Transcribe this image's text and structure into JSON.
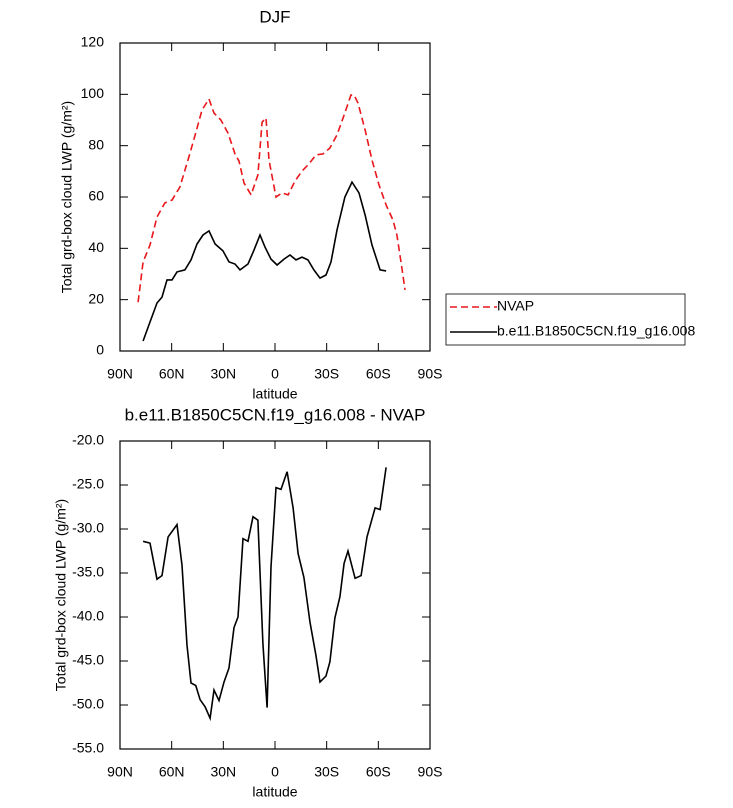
{
  "chart_data": [
    {
      "type": "line",
      "title": "DJF",
      "xlabel": "latitude",
      "ylabel": "Total grd-box cloud LWP (g/m²)",
      "xlim": [
        90,
        -90
      ],
      "xticks": [
        {
          "value": 90,
          "label": "90N"
        },
        {
          "value": 60,
          "label": "60N"
        },
        {
          "value": 30,
          "label": "30N"
        },
        0,
        {
          "value": -30,
          "label": "30S"
        },
        {
          "value": -60,
          "label": "60S"
        },
        {
          "value": -90,
          "label": "90S"
        }
      ],
      "ylim": [
        0,
        120
      ],
      "yticks": [
        0,
        20,
        40,
        60,
        80,
        100,
        120
      ],
      "legend": "right",
      "series": [
        {
          "name": "NVAP",
          "color": "#e8171b",
          "line_style": "dashed",
          "x": [
            79.5,
            76.6,
            72.6,
            68.5,
            63.9,
            59.8,
            55.2,
            50.5,
            46.5,
            42.4,
            38.3,
            35.4,
            31.4,
            27.3,
            23.2,
            20.9,
            18.0,
            13.9,
            9.9,
            7.5,
            5.2,
            3.5,
            -0.6,
            -4.1,
            -7.6,
            -11.6,
            -15.7,
            -19.7,
            -23.8,
            -27.9,
            -31.9,
            -36.0,
            -40.1,
            -44.1,
            -45.9,
            -48.2,
            -52.3,
            -56.3,
            -60.4,
            -64.5,
            -68.5,
            -70.8,
            -73.7,
            -75.5
          ],
          "values": [
            19,
            34.7,
            41.3,
            52.2,
            57.7,
            58.8,
            63.9,
            74.4,
            83.8,
            93.9,
            98.2,
            92.7,
            90,
            84.9,
            76.8,
            74,
            65.5,
            60.8,
            68.6,
            89.2,
            90.8,
            74.4,
            60,
            61.6,
            60.8,
            66.2,
            70.1,
            72.9,
            76.4,
            76.8,
            79.1,
            84.2,
            91.9,
            99.7,
            99.7,
            96.6,
            86.1,
            74.4,
            64.7,
            56.9,
            51,
            45.2,
            32.3,
            23.8
          ]
        },
        {
          "name": "b.e11.B1850C5CN.f19_g16.008",
          "color": "#000000",
          "line_style": "solid",
          "x": [
            76.6,
            72.6,
            68.5,
            65.6,
            62.7,
            59.8,
            56.9,
            52.3,
            48.8,
            45.3,
            41.8,
            38.3,
            34.8,
            30.2,
            26.7,
            23.2,
            20.3,
            15.7,
            12.2,
            8.7,
            5.8,
            2.3,
            -1.2,
            -5.2,
            -8.7,
            -12.2,
            -15.7,
            -19.1,
            -22.6,
            -26.1,
            -29.6,
            -32.5,
            -36.0,
            -40.6,
            -44.7,
            -48.8,
            -52.3,
            -56.3,
            -61.0,
            -64.5
          ],
          "values": [
            3.9,
            11.3,
            18.7,
            21,
            27.7,
            27.7,
            30.8,
            31.6,
            35.5,
            41.7,
            45.2,
            46.8,
            41.7,
            39,
            34.7,
            33.9,
            31.6,
            33.9,
            39.3,
            45.2,
            40.5,
            35.8,
            33.5,
            35.8,
            37.4,
            35.5,
            36.6,
            35.5,
            31.6,
            28.4,
            29.6,
            34.7,
            47.1,
            60,
            65.8,
            61.6,
            53,
            41.3,
            31.6,
            31.2
          ]
        }
      ]
    },
    {
      "type": "line",
      "title": "b.e11.B1850C5CN.f19_g16.008 - NVAP",
      "xlabel": "latitude",
      "ylabel": "Total grd-box cloud LWP (g/m²)",
      "xlim": [
        90,
        -90
      ],
      "xticks": [
        {
          "value": 90,
          "label": "90N"
        },
        {
          "value": 60,
          "label": "60N"
        },
        {
          "value": 30,
          "label": "30N"
        },
        0,
        {
          "value": -30,
          "label": "30S"
        },
        {
          "value": -60,
          "label": "60S"
        },
        {
          "value": -90,
          "label": "90S"
        }
      ],
      "ylim": [
        -55,
        -20
      ],
      "yticks": [
        {
          "value": -55,
          "label": "-55.0"
        },
        {
          "value": -50,
          "label": "-50.0"
        },
        {
          "value": -45,
          "label": "-45.0"
        },
        {
          "value": -40,
          "label": "-40.0"
        },
        {
          "value": -35,
          "label": "-35.0"
        },
        {
          "value": -30,
          "label": "-30.0"
        },
        {
          "value": -25,
          "label": "-25.0"
        },
        {
          "value": -20,
          "label": "-20.0"
        }
      ],
      "series": [
        {
          "color": "#000000",
          "line_style": "solid",
          "x": [
            76.6,
            72.6,
            68.5,
            65.6,
            62.1,
            56.9,
            54.0,
            51.1,
            48.8,
            46.0,
            43.5,
            40.6,
            37.7,
            35.4,
            32.5,
            29.6,
            26.7,
            23.8,
            21.5,
            18.6,
            15.7,
            12.8,
            9.9,
            7.0,
            4.6,
            2.3,
            -0.6,
            -3.5,
            -7.0,
            -10.5,
            -13.4,
            -16.8,
            -20.3,
            -23.8,
            -26.1,
            -29.6,
            -31.9,
            -34.8,
            -37.7,
            -40.1,
            -42.4,
            -46.5,
            -50.0,
            -53.4,
            -58.1,
            -61.0,
            -64.5
          ],
          "values": [
            -31.4,
            -31.6,
            -35.7,
            -35.3,
            -30.9,
            -29.5,
            -34.1,
            -43.2,
            -47.5,
            -47.8,
            -49.4,
            -50.2,
            -51.5,
            -48.3,
            -49.5,
            -47.4,
            -45.8,
            -41.2,
            -40,
            -31.1,
            -31.4,
            -28.6,
            -29,
            -43,
            -50.3,
            -34.3,
            -25.3,
            -25.5,
            -23.5,
            -27.6,
            -32.8,
            -35.5,
            -40.6,
            -44.4,
            -47.4,
            -46.7,
            -45.1,
            -40.1,
            -37.7,
            -33.9,
            -32.5,
            -35.6,
            -35.3,
            -30.9,
            -27.6,
            -27.8,
            -23
          ]
        }
      ]
    }
  ]
}
